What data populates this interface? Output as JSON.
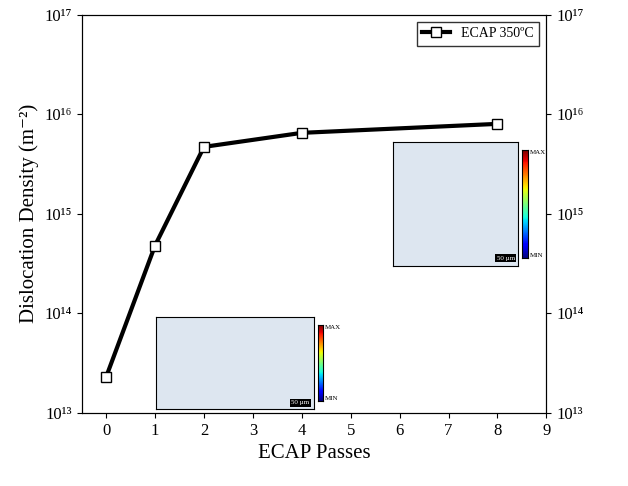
{
  "chart_data": {
    "type": "line",
    "x_label": "ECAP Passes",
    "y_label": "Dislocation Density (m⁻²)",
    "series": [
      {
        "name": "ECAP 350ºC",
        "color": "#000000",
        "marker": "square",
        "line_style": "solid",
        "x": [
          0,
          1,
          2,
          4,
          8
        ],
        "values": [
          23000000000000.0,
          480000000000000.0,
          4700000000000000.0,
          6500000000000000.0,
          8000000000000000.0
        ]
      }
    ],
    "xlim": [
      -0.5,
      9
    ],
    "xticks": [
      0,
      1,
      2,
      3,
      4,
      5,
      6,
      7,
      8,
      9
    ],
    "log": "y",
    "ylim": [
      10000000000000.0,
      1e+17
    ],
    "yticks": [
      {
        "value": 10000000000000.0,
        "label": "10¹³"
      },
      {
        "value": 100000000000000.0,
        "label": "10¹⁴"
      },
      {
        "value": 1000000000000000.0,
        "label": "10¹⁵"
      },
      {
        "value": 1e+16,
        "label": "10¹⁶"
      },
      {
        "value": 1e+17,
        "label": "10¹⁷"
      }
    ],
    "y2lim": [
      10000000000000.0,
      1e+17
    ],
    "y2ticks": [
      {
        "value": 10000000000000.0,
        "label": "10¹³"
      },
      {
        "value": 100000000000000.0,
        "label": "10¹⁴"
      },
      {
        "value": 1000000000000000.0,
        "label": "10¹⁵"
      },
      {
        "value": 1e+16,
        "label": "10¹⁶"
      },
      {
        "value": 1e+17,
        "label": "10¹⁷"
      }
    ],
    "legend": "upper right",
    "grid": false,
    "insets": [
      {
        "max_label": "MAX",
        "min_label": "MIN",
        "scale_bar": "50 µm"
      },
      {
        "max_label": "MAX",
        "min_label": "MIN",
        "scale_bar": "50 µm"
      }
    ]
  }
}
